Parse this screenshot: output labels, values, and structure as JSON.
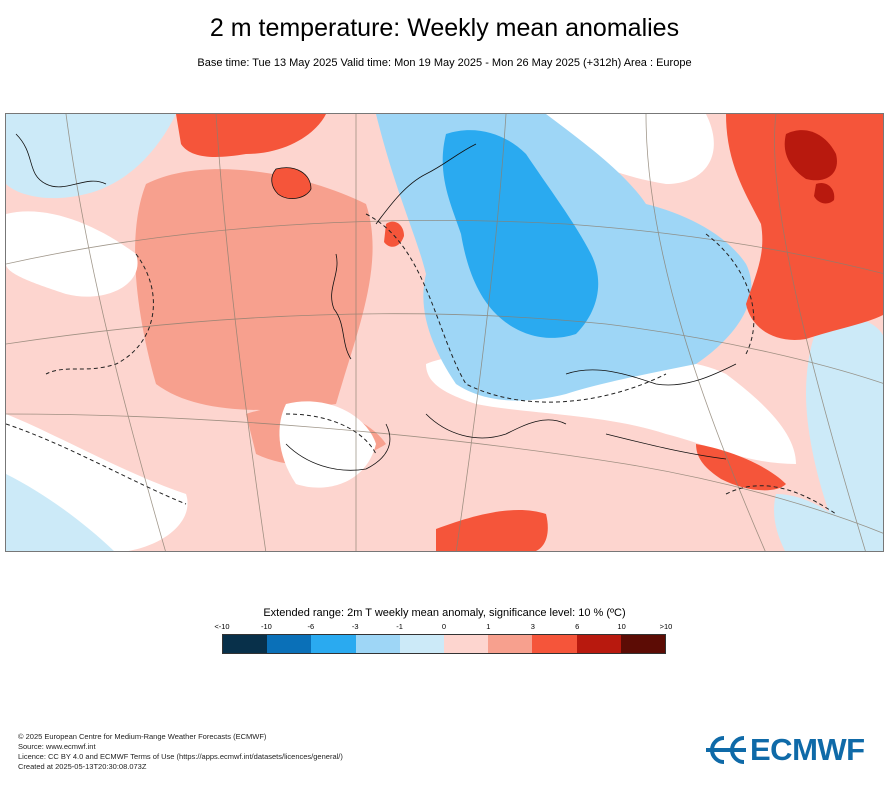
{
  "title": "2 m temperature: Weekly mean anomalies",
  "subtitle": "Base time: Tue 13 May 2025 Valid time: Mon 19 May 2025 - Mon 26 May 2025 (+312h) Area : Europe",
  "map": {
    "area": "Europe",
    "variable": "2m T weekly mean anomaly",
    "regions": [
      {
        "name": "north-atlantic",
        "anomaly_class": "0 to 1"
      },
      {
        "name": "central-atlantic",
        "anomaly_class": "1 to 3"
      },
      {
        "name": "greenland-coast",
        "anomaly_class": "3 to 6"
      },
      {
        "name": "iceland",
        "anomaly_class": "3 to 6"
      },
      {
        "name": "eastern-europe",
        "anomaly_class": "-6 to -3"
      },
      {
        "name": "scandinavia",
        "anomaly_class": "-3 to -1"
      },
      {
        "name": "russia",
        "anomaly_class": "3 to 6"
      },
      {
        "name": "western-russia-core",
        "anomaly_class": "6 to 10"
      },
      {
        "name": "north-africa",
        "anomaly_class": "1 to 3"
      },
      {
        "name": "sahara-east",
        "anomaly_class": "3 to 6"
      }
    ]
  },
  "legend": {
    "title": "Extended range: 2m T weekly mean anomaly, significance level: 10 % (ºC)",
    "labels": [
      "<-10",
      "-10",
      "-6",
      "-3",
      "-1",
      "0",
      "1",
      "3",
      "6",
      "10",
      ">10"
    ],
    "colors": [
      "#08304a",
      "#0a70b8",
      "#2aaaf0",
      "#9ed6f6",
      "#cceaf8",
      "#fdd5cf",
      "#f7a08e",
      "#f5553a",
      "#b8190e",
      "#5c0c05"
    ]
  },
  "footer": {
    "lines": [
      "© 2025 European Centre for Medium-Range Weather Forecasts (ECMWF)",
      "Source: www.ecmwf.int",
      "Licence: CC BY 4.0 and ECMWF Terms of Use (https://apps.ecmwf.int/datasets/licences/general/)",
      "Created at 2025-05-13T20:30:08.073Z"
    ]
  },
  "logo": {
    "text": "ECMWF",
    "icon": "ecmwf-logo-icon",
    "color": "#0f6aa8"
  }
}
